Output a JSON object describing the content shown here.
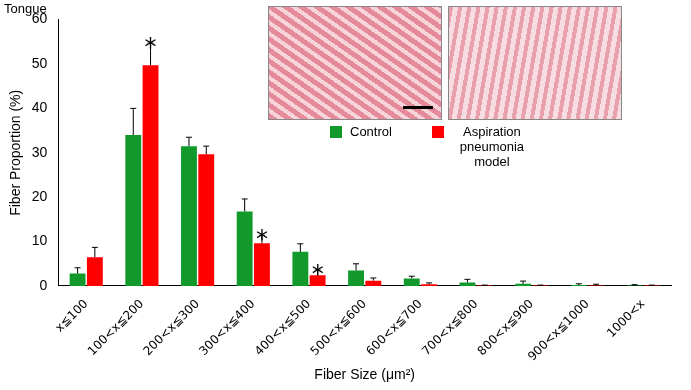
{
  "chart_data": {
    "type": "bar",
    "title": "Tongue",
    "x_label": "Fiber Size (μm²)",
    "y_label": "Fiber Proportion (%)",
    "categories": [
      "x≦100",
      "100<x≦200",
      "200<x≦300",
      "300<x≦400",
      "400<x≦500",
      "500<x≦600",
      "600<x≦700",
      "700<x≦800",
      "800<x≦900",
      "900<x≦1000",
      "1000<x"
    ],
    "series": [
      {
        "name": "Control",
        "color": "#119a2b",
        "values": [
          2.8,
          34,
          31.5,
          16.8,
          7.7,
          3.5,
          1.7,
          0.8,
          0.5,
          0.2,
          0.1
        ],
        "errors": [
          1.3,
          6,
          2,
          2.8,
          1.8,
          1.5,
          0.5,
          0.7,
          0.6,
          0.3,
          0.2
        ]
      },
      {
        "name": "Aspiration pneumonia model",
        "color": "#ff0000",
        "values": [
          6.5,
          49.7,
          29.7,
          9.6,
          2.4,
          1.2,
          0.4,
          0.1,
          0.1,
          0.1,
          0.1
        ],
        "errors": [
          2.2,
          5,
          1.8,
          1.8,
          1.2,
          0.6,
          0.3,
          0.1,
          0.1,
          0.3,
          0.1
        ]
      }
    ],
    "ylim": [
      0,
      60
    ],
    "yticks": [
      0,
      10,
      20,
      30,
      40,
      50,
      60
    ],
    "grid": false,
    "legend": "upper right",
    "annotations": [
      {
        "text": "*",
        "category": "100<x≦200",
        "series": "Aspiration pneumonia model"
      },
      {
        "text": "*",
        "category": "300<x≦400",
        "series": "Aspiration pneumonia model"
      },
      {
        "text": "*",
        "category": "400<x≦500",
        "series": "Aspiration pneumonia model"
      }
    ]
  }
}
